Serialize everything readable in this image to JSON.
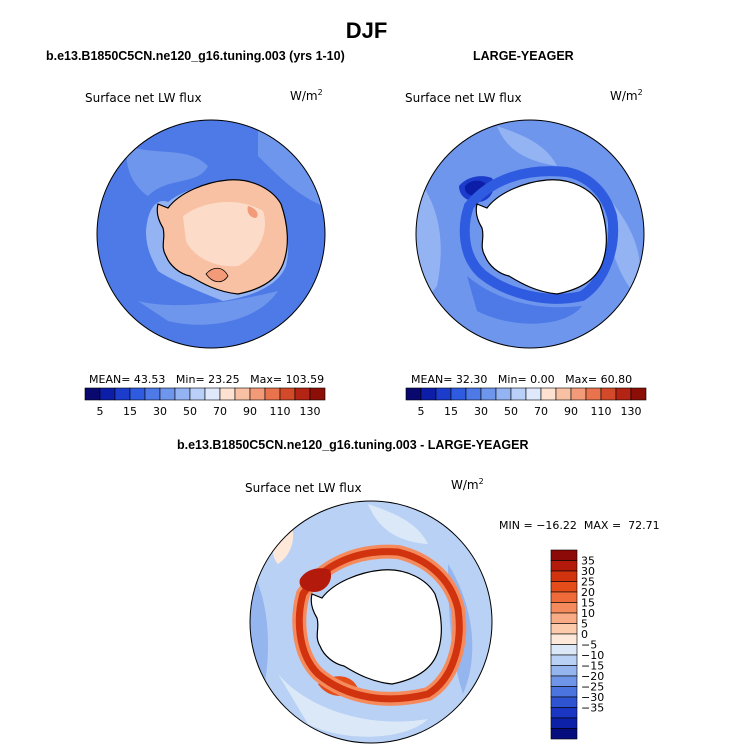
{
  "page_title": "DJF",
  "chart_data": [
    {
      "type": "heatmap",
      "projection": "south-polar-stereographic",
      "title": "b.e13.B1850C5CN.ne120_g16.tuning.003 (yrs 1-10)",
      "subtitle": "Surface net LW flux",
      "units_label": "W/m",
      "units_exp": "2",
      "stats": {
        "mean_label": "MEAN=",
        "mean": "43.53",
        "min_label": "Min=",
        "min": "23.25",
        "max_label": "Max=",
        "max": "103.59"
      },
      "colorbar": {
        "orientation": "horizontal",
        "ticks": [
          "5",
          "15",
          "30",
          "50",
          "70",
          "90",
          "110",
          "130"
        ],
        "colors": [
          "#08086f",
          "#0c1ea8",
          "#1c3ccb",
          "#2f5be0",
          "#4d7ae6",
          "#6f96ed",
          "#93b3f3",
          "#bad0f8",
          "#dfe9fb",
          "#fde2d2",
          "#f9c1a4",
          "#f39b78",
          "#e8734d",
          "#d34a2a",
          "#b32415",
          "#8c0f07"
        ]
      }
    },
    {
      "type": "heatmap",
      "projection": "south-polar-stereographic",
      "title": "LARGE-YEAGER",
      "subtitle": "Surface net LW flux",
      "units_label": "W/m",
      "units_exp": "2",
      "stats": {
        "mean_label": "MEAN=",
        "mean": "32.30",
        "min_label": "Min=",
        "min": "0.00",
        "max_label": "Max=",
        "max": "60.80"
      },
      "colorbar": {
        "orientation": "horizontal",
        "ticks": [
          "5",
          "15",
          "30",
          "50",
          "70",
          "90",
          "110",
          "130"
        ],
        "colors": [
          "#08086f",
          "#0c1ea8",
          "#1c3ccb",
          "#2f5be0",
          "#4d7ae6",
          "#6f96ed",
          "#93b3f3",
          "#bad0f8",
          "#dfe9fb",
          "#fde2d2",
          "#f9c1a4",
          "#f39b78",
          "#e8734d",
          "#d34a2a",
          "#b32415",
          "#8c0f07"
        ]
      }
    },
    {
      "type": "heatmap",
      "projection": "south-polar-stereographic",
      "title": "b.e13.B1850C5CN.ne120_g16.tuning.003 - LARGE-YEAGER",
      "subtitle": "Surface net LW flux",
      "units_label": "W/m",
      "units_exp": "2",
      "stats": {
        "min_label": "MIN =",
        "min": "−16.22",
        "max_label": "MAX =",
        "max": "72.71"
      },
      "colorbar": {
        "orientation": "vertical",
        "ticks": [
          "35",
          "30",
          "25",
          "20",
          "15",
          "10",
          "5",
          "0",
          "−5",
          "−10",
          "−15",
          "−20",
          "−25",
          "−30",
          "−35"
        ],
        "colors": [
          "#8c0a08",
          "#b31a0b",
          "#d1330f",
          "#e44c1a",
          "#f06b3a",
          "#f58b5d",
          "#f8ab84",
          "#fbcbac",
          "#fde8da",
          "#dbe8f8",
          "#b9d1f4",
          "#94b5ee",
          "#6e95e7",
          "#4b74de",
          "#2f54d2",
          "#1a36c2",
          "#0c20a8",
          "#060d7c"
        ]
      }
    }
  ]
}
